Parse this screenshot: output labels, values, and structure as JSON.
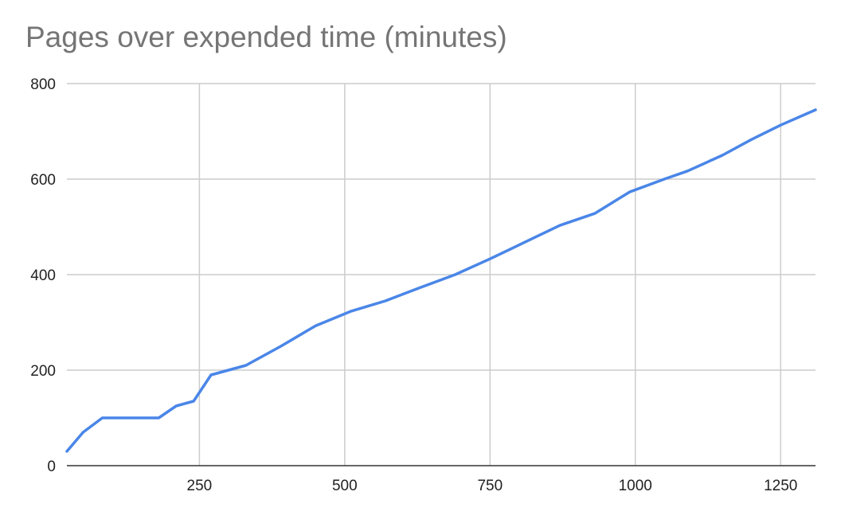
{
  "chart_data": {
    "type": "line",
    "title": "Pages over expended time (minutes)",
    "xlabel": "",
    "ylabel": "",
    "xlim": [
      22,
      1310
    ],
    "ylim": [
      0,
      800
    ],
    "x_ticks": [
      250,
      500,
      750,
      1000,
      1250
    ],
    "x_tick_labels": [
      "250",
      "500",
      "750",
      "1000",
      "1250"
    ],
    "y_ticks": [
      0,
      200,
      400,
      600,
      800
    ],
    "y_tick_labels": [
      "0",
      "200",
      "400",
      "600",
      "800"
    ],
    "grid": true,
    "legend": "none",
    "series": [
      {
        "color": "#4a86e8",
        "x": [
          22,
          50,
          83,
          120,
          180,
          210,
          240,
          270,
          330,
          390,
          450,
          510,
          570,
          630,
          690,
          750,
          810,
          870,
          930,
          990,
          1050,
          1090,
          1150,
          1200,
          1250,
          1310
        ],
        "y": [
          30,
          70,
          100,
          100,
          100,
          125,
          135,
          190,
          210,
          250,
          293,
          323,
          345,
          373,
          400,
          433,
          468,
          503,
          528,
          573,
          600,
          617,
          650,
          683,
          713,
          745
        ]
      }
    ]
  }
}
